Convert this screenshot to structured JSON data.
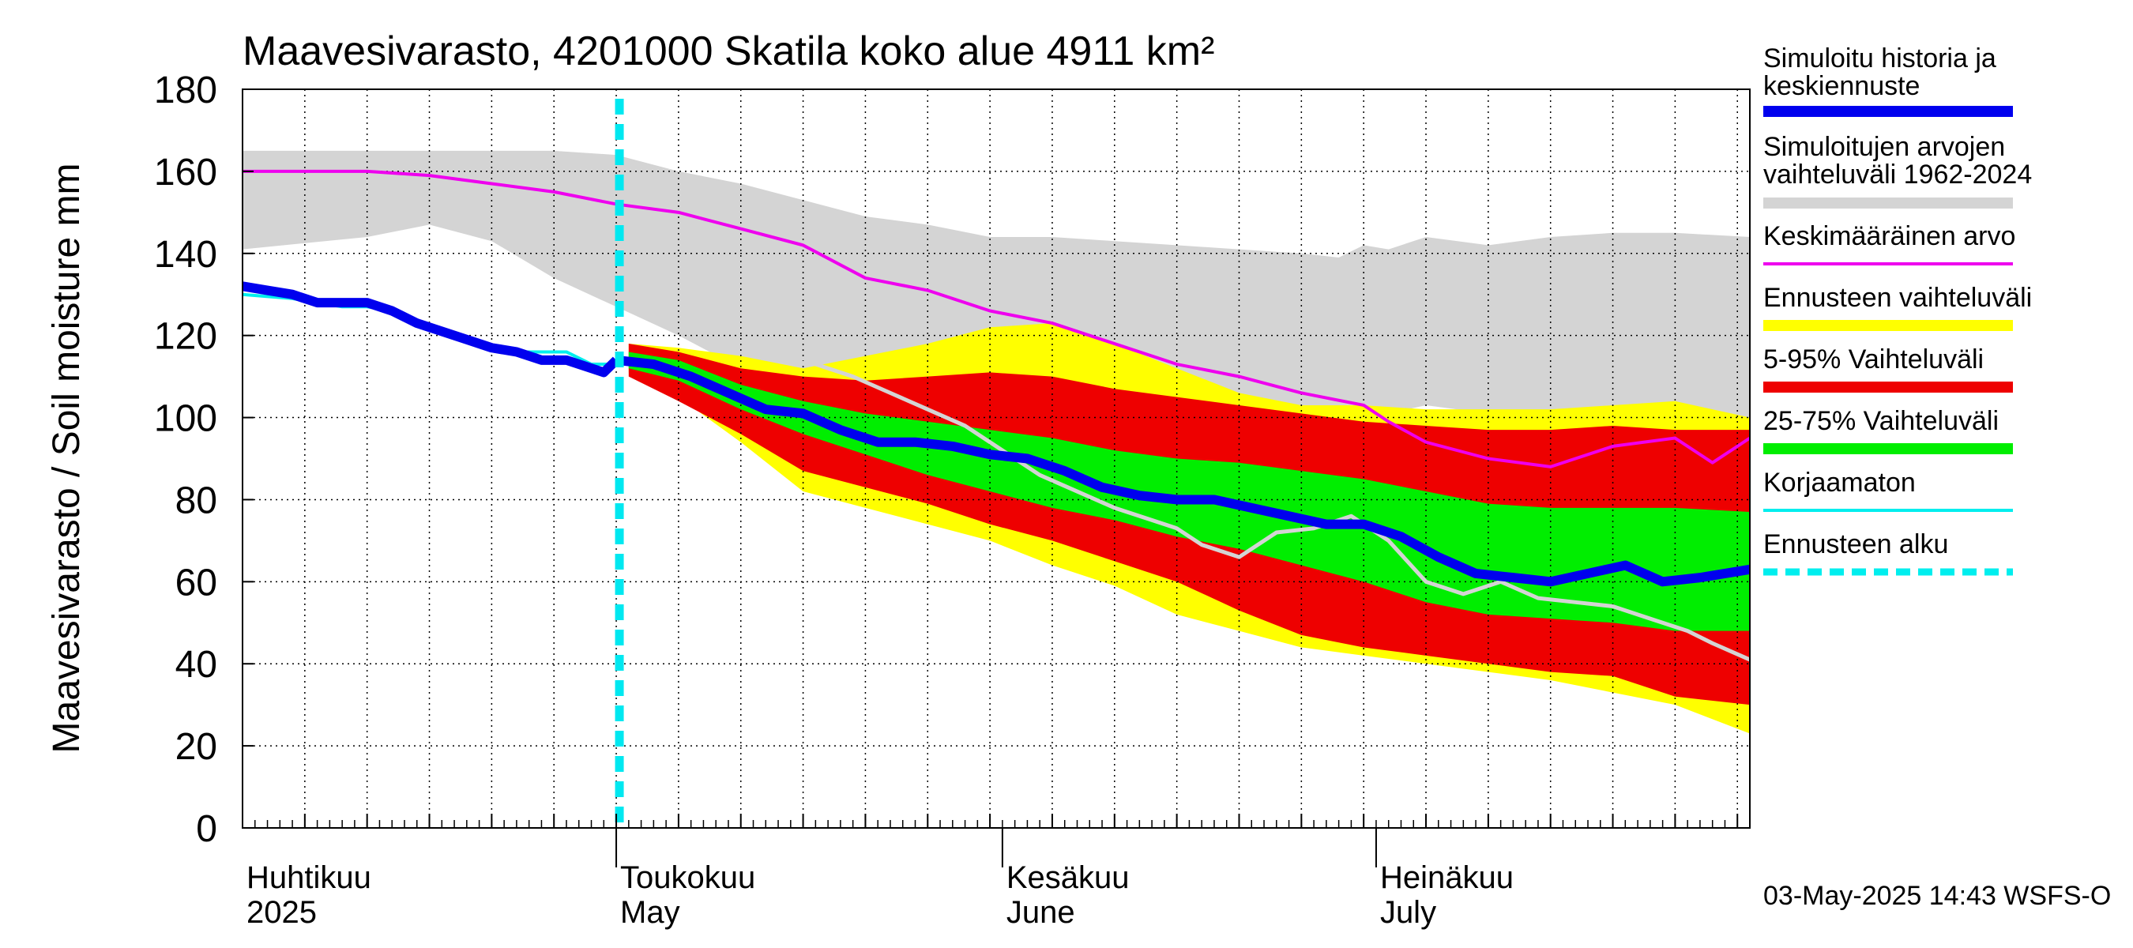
{
  "chart_data": {
    "type": "area",
    "title": "Maavesivarasto, 4201000 Skatila koko alue 4911 km²",
    "ylabel": "Maavesivarasto / Soil moisture   mm",
    "ylim": [
      0,
      180
    ],
    "yticks": [
      0,
      20,
      40,
      60,
      80,
      100,
      120,
      140,
      160,
      180
    ],
    "xlim_day": [
      0,
      121
    ],
    "forecast_start_day": 30,
    "grid": true,
    "month_labels": [
      {
        "fi": "Huhtikuu",
        "en": "2025",
        "day": 0
      },
      {
        "fi": "Toukokuu",
        "en": "May",
        "day": 30
      },
      {
        "fi": "Kesäkuu",
        "en": "June",
        "day": 61
      },
      {
        "fi": "Heinäkuu",
        "en": "July",
        "day": 91
      }
    ],
    "month_boundaries_day": [
      30,
      61,
      91
    ],
    "legend": [
      {
        "label": "Simuloitu historia ja keskiennuste",
        "color": "#0000ee",
        "style": "thick"
      },
      {
        "label": "Simuloitujen arvojen vaihteluväli 1962-2024",
        "color": "#d4d4d4",
        "style": "thick"
      },
      {
        "label": "Keskimääräinen arvo",
        "color": "#ee00ee",
        "style": "line"
      },
      {
        "label": "Ennusteen vaihteluväli",
        "color": "#ffff00",
        "style": "thick"
      },
      {
        "label": "5-95% Vaihteluväli",
        "color": "#ee0000",
        "style": "thick"
      },
      {
        "label": "25-75% Vaihteluväli",
        "color": "#00ee00",
        "style": "thick"
      },
      {
        "label": "Korjaamaton",
        "color": "#00eeee",
        "style": "line"
      },
      {
        "label": "Ennusteen alku",
        "color": "#00eeee",
        "style": "dashed"
      }
    ],
    "series": {
      "history_range": {
        "x": [
          0,
          10,
          15,
          20,
          25,
          30,
          35,
          40,
          45,
          50,
          55,
          60,
          65,
          70,
          75,
          80,
          85,
          88,
          90,
          92,
          95,
          100,
          105,
          110,
          115,
          121
        ],
        "low": [
          141,
          144,
          147,
          143,
          134,
          127,
          120,
          112,
          104,
          98,
          96,
          94,
          98,
          94,
          96,
          99,
          101,
          100,
          103,
          101,
          103,
          101,
          100,
          102,
          101,
          100
        ],
        "high": [
          165,
          165,
          165,
          165,
          165,
          164,
          160,
          157,
          153,
          149,
          147,
          144,
          144,
          143,
          142,
          141,
          140,
          139,
          142,
          141,
          144,
          142,
          144,
          145,
          145,
          144
        ]
      },
      "mean": {
        "x": [
          0,
          5,
          10,
          15,
          20,
          25,
          30,
          35,
          40,
          45,
          50,
          55,
          60,
          65,
          70,
          75,
          80,
          85,
          90,
          92,
          95,
          100,
          105,
          110,
          115,
          118,
          121
        ],
        "values": [
          160,
          160,
          160,
          159,
          157,
          155,
          152,
          150,
          146,
          142,
          134,
          131,
          126,
          123,
          118,
          113,
          110,
          106,
          103,
          99,
          94,
          90,
          88,
          93,
          95,
          89,
          95
        ]
      },
      "history_sim": {
        "x": [
          0,
          2,
          4,
          6,
          8,
          10,
          12,
          14,
          16,
          18,
          20,
          22,
          24,
          26,
          28,
          29,
          30
        ],
        "values": [
          132,
          131,
          130,
          128,
          128,
          128,
          126,
          123,
          121,
          119,
          117,
          116,
          114,
          114,
          112,
          111,
          114
        ]
      },
      "uncorrected": {
        "x": [
          0,
          4,
          8,
          10,
          12,
          14,
          16,
          18,
          20,
          22,
          24,
          26,
          28,
          30
        ],
        "values": [
          130,
          129,
          127,
          127,
          126,
          123,
          121,
          119,
          117,
          116,
          116,
          116,
          113,
          113
        ]
      },
      "forecast_range": {
        "x": [
          31,
          35,
          40,
          45,
          50,
          55,
          60,
          65,
          70,
          75,
          80,
          85,
          90,
          95,
          100,
          105,
          110,
          115,
          121
        ],
        "low": [
          111,
          105,
          94,
          82,
          78,
          74,
          70,
          64,
          59,
          52,
          48,
          44,
          42,
          40,
          38,
          36,
          33,
          30,
          23
        ],
        "high": [
          118,
          117,
          115,
          112,
          115,
          118,
          122,
          123,
          118,
          112,
          106,
          103,
          103,
          102,
          102,
          102,
          103,
          104,
          100
        ]
      },
      "range_5_95": {
        "x": [
          31,
          35,
          40,
          45,
          50,
          55,
          60,
          65,
          70,
          75,
          80,
          85,
          90,
          95,
          100,
          105,
          110,
          115,
          121
        ],
        "low": [
          110,
          104,
          96,
          87,
          83,
          79,
          74,
          70,
          65,
          60,
          53,
          47,
          44,
          42,
          40,
          38,
          37,
          32,
          30
        ],
        "high": [
          118,
          116,
          112,
          110,
          109,
          110,
          111,
          110,
          107,
          105,
          103,
          101,
          99,
          98,
          97,
          97,
          98,
          97,
          97
        ]
      },
      "range_25_75": {
        "x": [
          31,
          35,
          40,
          45,
          50,
          55,
          60,
          65,
          70,
          75,
          80,
          85,
          90,
          95,
          100,
          105,
          110,
          115,
          121
        ],
        "low": [
          112,
          109,
          102,
          96,
          91,
          86,
          82,
          78,
          75,
          71,
          68,
          64,
          60,
          55,
          52,
          51,
          50,
          48,
          48
        ],
        "high": [
          116,
          114,
          108,
          104,
          101,
          99,
          97,
          95,
          92,
          90,
          89,
          87,
          85,
          82,
          79,
          78,
          78,
          78,
          77
        ]
      },
      "median_forecast": {
        "x": [
          30,
          33,
          36,
          39,
          42,
          45,
          48,
          51,
          54,
          57,
          60,
          63,
          66,
          69,
          72,
          75,
          78,
          81,
          84,
          87,
          90,
          93,
          96,
          99,
          102,
          105,
          108,
          111,
          114,
          117,
          121
        ],
        "values": [
          114,
          113,
          110,
          106,
          102,
          101,
          97,
          94,
          94,
          93,
          91,
          90,
          87,
          83,
          81,
          80,
          80,
          78,
          76,
          74,
          74,
          71,
          66,
          62,
          61,
          60,
          62,
          64,
          60,
          61,
          63
        ]
      },
      "old_forecast": {
        "x": [
          43,
          46,
          49,
          52,
          55,
          58,
          61,
          64,
          67,
          70,
          73,
          75,
          77,
          80,
          83,
          86,
          89,
          92,
          95,
          98,
          101,
          104,
          107,
          110,
          113,
          116,
          118,
          121
        ],
        "values": [
          114,
          113,
          110,
          106,
          102,
          98,
          92,
          86,
          82,
          78,
          75,
          73,
          69,
          66,
          72,
          73,
          76,
          70,
          60,
          57,
          60,
          56,
          55,
          54,
          51,
          48,
          45,
          41
        ]
      }
    }
  },
  "footer": {
    "timestamp": "03-May-2025 14:43 WSFS-O"
  }
}
